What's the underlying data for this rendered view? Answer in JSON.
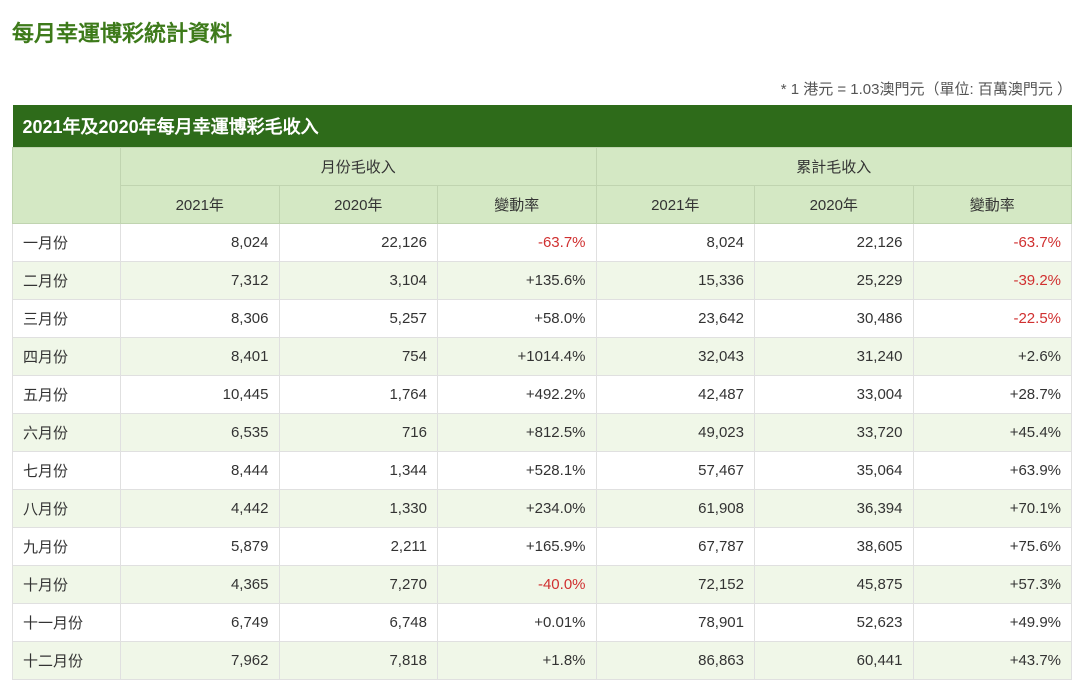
{
  "page_title": "每月幸運博彩統計資料",
  "note": "* 1 港元 = 1.03澳門元（單位: 百萬澳門元 ）",
  "table": {
    "title": "2021年及2020年每月幸運博彩毛收入",
    "group_headers": [
      "月份毛收入",
      "累計毛收入"
    ],
    "sub_headers": [
      "2021年",
      "2020年",
      "變動率",
      "2021年",
      "2020年",
      "變動率"
    ],
    "rows": [
      {
        "month": "一月份",
        "m21": "8,024",
        "m20": "22,126",
        "mchg": "-63.7%",
        "mneg": true,
        "c21": "8,024",
        "c20": "22,126",
        "cchg": "-63.7%",
        "cneg": true
      },
      {
        "month": "二月份",
        "m21": "7,312",
        "m20": "3,104",
        "mchg": "+135.6%",
        "mneg": false,
        "c21": "15,336",
        "c20": "25,229",
        "cchg": "-39.2%",
        "cneg": true
      },
      {
        "month": "三月份",
        "m21": "8,306",
        "m20": "5,257",
        "mchg": "+58.0%",
        "mneg": false,
        "c21": "23,642",
        "c20": "30,486",
        "cchg": "-22.5%",
        "cneg": true
      },
      {
        "month": "四月份",
        "m21": "8,401",
        "m20": "754",
        "mchg": "+1014.4%",
        "mneg": false,
        "c21": "32,043",
        "c20": "31,240",
        "cchg": "+2.6%",
        "cneg": false
      },
      {
        "month": "五月份",
        "m21": "10,445",
        "m20": "1,764",
        "mchg": "+492.2%",
        "mneg": false,
        "c21": "42,487",
        "c20": "33,004",
        "cchg": "+28.7%",
        "cneg": false
      },
      {
        "month": "六月份",
        "m21": "6,535",
        "m20": "716",
        "mchg": "+812.5%",
        "mneg": false,
        "c21": "49,023",
        "c20": "33,720",
        "cchg": "+45.4%",
        "cneg": false
      },
      {
        "month": "七月份",
        "m21": "8,444",
        "m20": "1,344",
        "mchg": "+528.1%",
        "mneg": false,
        "c21": "57,467",
        "c20": "35,064",
        "cchg": "+63.9%",
        "cneg": false
      },
      {
        "month": "八月份",
        "m21": "4,442",
        "m20": "1,330",
        "mchg": "+234.0%",
        "mneg": false,
        "c21": "61,908",
        "c20": "36,394",
        "cchg": "+70.1%",
        "cneg": false
      },
      {
        "month": "九月份",
        "m21": "5,879",
        "m20": "2,211",
        "mchg": "+165.9%",
        "mneg": false,
        "c21": "67,787",
        "c20": "38,605",
        "cchg": "+75.6%",
        "cneg": false
      },
      {
        "month": "十月份",
        "m21": "4,365",
        "m20": "7,270",
        "mchg": "-40.0%",
        "mneg": true,
        "c21": "72,152",
        "c20": "45,875",
        "cchg": "+57.3%",
        "cneg": false
      },
      {
        "month": "十一月份",
        "m21": "6,749",
        "m20": "6,748",
        "mchg": "+0.01%",
        "mneg": false,
        "c21": "78,901",
        "c20": "52,623",
        "cchg": "+49.9%",
        "cneg": false
      },
      {
        "month": "十二月份",
        "m21": "7,962",
        "m20": "7,818",
        "mchg": "+1.8%",
        "mneg": false,
        "c21": "86,863",
        "c20": "60,441",
        "cchg": "+43.7%",
        "cneg": false
      }
    ]
  },
  "styling": {
    "title_color": "#3d7a1a",
    "header_bg": "#2e6b1a",
    "header_text": "#ffffff",
    "subheader_bg": "#d4e8c4",
    "row_even_bg": "#ffffff",
    "row_odd_bg": "#f0f7e8",
    "negative_color": "#d03030",
    "text_color": "#333333",
    "border_color": "#e0e0e0"
  }
}
